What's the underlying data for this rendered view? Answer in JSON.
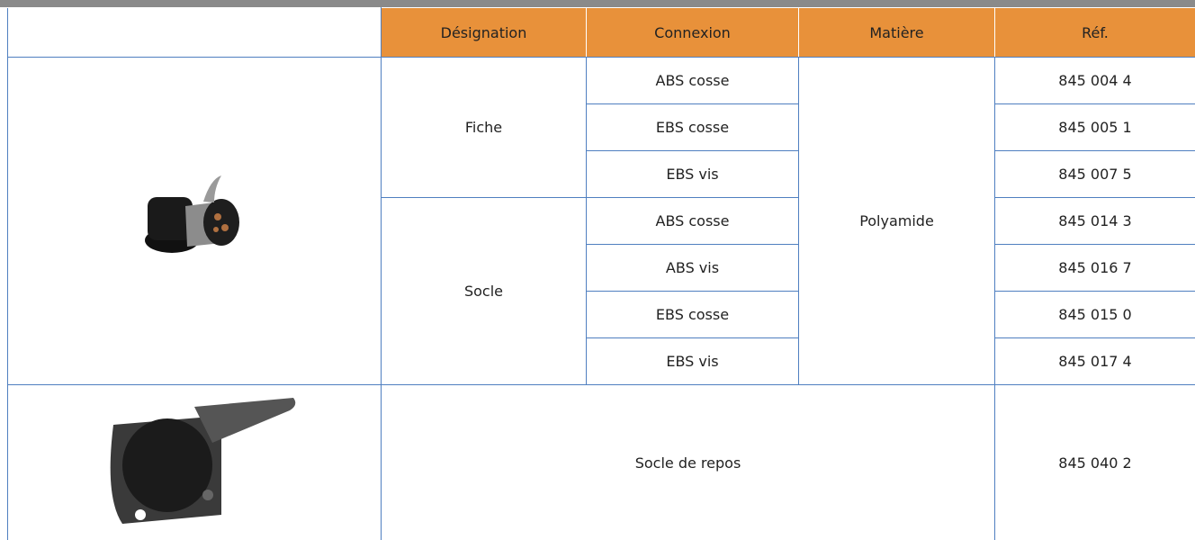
{
  "table": {
    "header": [
      "Désignation",
      "Connexion",
      "Matière",
      "Réf."
    ],
    "material": "Polyamide",
    "groups": [
      {
        "designation": "Fiche",
        "rows": [
          {
            "connexion": "ABS cosse",
            "ref": "845 004 4"
          },
          {
            "connexion": "EBS cosse",
            "ref": "845 005 1"
          },
          {
            "connexion": "EBS vis",
            "ref": "845 007 5"
          }
        ]
      },
      {
        "designation": "Socle",
        "rows": [
          {
            "connexion": "ABS cosse",
            "ref": "845 014 3"
          },
          {
            "connexion": "ABS vis",
            "ref": "845 016 7"
          },
          {
            "connexion": "EBS cosse",
            "ref": "845 015 0"
          },
          {
            "connexion": "EBS vis",
            "ref": "845 017 4"
          }
        ]
      }
    ],
    "last": {
      "designation": "Socle de repos",
      "ref": "845 040 2"
    }
  }
}
